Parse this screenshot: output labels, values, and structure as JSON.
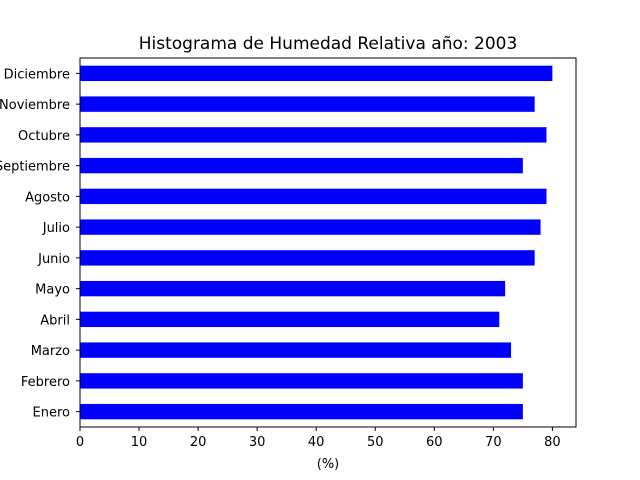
{
  "chart_data": {
    "type": "bar",
    "orientation": "horizontal",
    "title": "Histograma de Humedad Relativa año: 2003",
    "xlabel": "(%)",
    "ylabel": "",
    "xlim": [
      0,
      84
    ],
    "xticks": [
      0,
      10,
      20,
      30,
      40,
      50,
      60,
      70,
      80
    ],
    "grid": false,
    "bar_color": "#0000ff",
    "categories": [
      "Enero",
      "Febrero",
      "Marzo",
      "Abril",
      "Mayo",
      "Junio",
      "Julio",
      "Agosto",
      "Septiembre",
      "Octubre",
      "Noviembre",
      "Diciembre"
    ],
    "values": [
      75,
      75,
      73,
      71,
      72,
      77,
      78,
      79,
      75,
      79,
      77,
      80
    ]
  }
}
